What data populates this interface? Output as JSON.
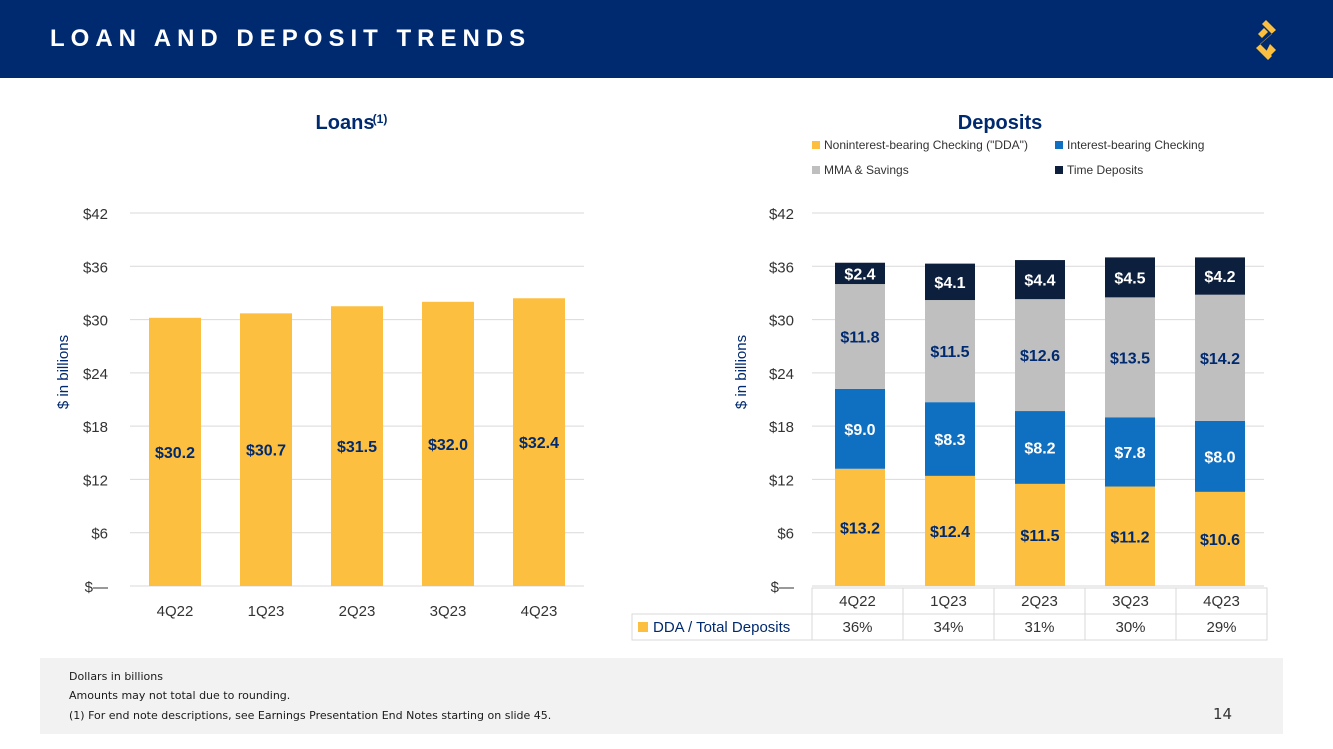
{
  "header": {
    "title": "LOAN AND DEPOSIT TRENDS"
  },
  "colors": {
    "navy": "#002a70",
    "gold": "#fdbf3f",
    "blue": "#0f6fc0",
    "gray": "#bfbfbf",
    "dark": "#0c1f3d"
  },
  "chart_data": [
    {
      "type": "bar",
      "title": "Loans",
      "title_note": "(1)",
      "ylabel": "$ in billions",
      "ylim": [
        0,
        42
      ],
      "yticks": [
        "$—",
        "$6",
        "$12",
        "$18",
        "$24",
        "$30",
        "$36",
        "$42"
      ],
      "categories": [
        "4Q22",
        "1Q23",
        "2Q23",
        "3Q23",
        "4Q23"
      ],
      "values": [
        30.2,
        30.7,
        31.5,
        32.0,
        32.4
      ],
      "labels": [
        "$30.2",
        "$30.7",
        "$31.5",
        "$32.0",
        "$32.4"
      ]
    },
    {
      "type": "stacked-bar",
      "title": "Deposits",
      "ylabel": "$ in billions",
      "ylim": [
        0,
        42
      ],
      "yticks": [
        "$—",
        "$6",
        "$12",
        "$18",
        "$24",
        "$30",
        "$36",
        "$42"
      ],
      "categories": [
        "4Q22",
        "1Q23",
        "2Q23",
        "3Q23",
        "4Q23"
      ],
      "series": [
        {
          "name": "Noninterest-bearing Checking (\"DDA\")",
          "values": [
            13.2,
            12.4,
            11.5,
            11.2,
            10.6
          ],
          "labels": [
            "$13.2",
            "$12.4",
            "$11.5",
            "$11.2",
            "$10.6"
          ]
        },
        {
          "name": "Interest-bearing Checking",
          "values": [
            9.0,
            8.3,
            8.2,
            7.8,
            8.0
          ],
          "labels": [
            "$9.0",
            "$8.3",
            "$8.2",
            "$7.8",
            "$8.0"
          ]
        },
        {
          "name": "MMA & Savings",
          "values": [
            11.8,
            11.5,
            12.6,
            13.5,
            14.2
          ],
          "labels": [
            "$11.8",
            "$11.5",
            "$12.6",
            "$13.5",
            "$14.2"
          ]
        },
        {
          "name": "Time Deposits",
          "values": [
            2.4,
            4.1,
            4.4,
            4.5,
            4.2
          ],
          "labels": [
            "$2.4",
            "$4.1",
            "$4.4",
            "$4.5",
            "$4.2"
          ]
        }
      ],
      "table": {
        "row_label": "DDA / Total Deposits",
        "values": [
          "36%",
          "34%",
          "31%",
          "30%",
          "29%"
        ]
      }
    }
  ],
  "footer": {
    "notes": [
      "Dollars in billions",
      "Amounts may not total due to rounding.",
      "(1)   For end note descriptions, see Earnings Presentation End Notes starting on slide 45."
    ],
    "page_number": "14"
  }
}
